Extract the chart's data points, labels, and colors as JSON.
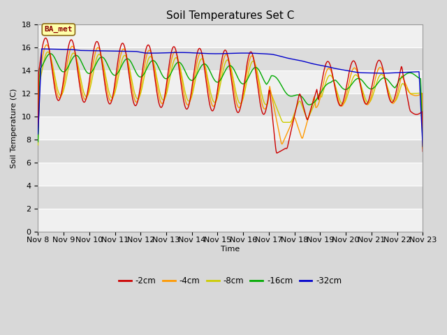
{
  "title": "Soil Temperatures Set C",
  "xlabel": "Time",
  "ylabel": "Soil Temperature (C)",
  "ylim": [
    0,
    18
  ],
  "yticks": [
    0,
    2,
    4,
    6,
    8,
    10,
    12,
    14,
    16,
    18
  ],
  "x_labels": [
    "Nov 8",
    "Nov 9",
    "Nov 10",
    "Nov 11",
    "Nov 12",
    "Nov 13",
    "Nov 14",
    "Nov 15",
    "Nov 16",
    "Nov 17",
    "Nov 18",
    "Nov 19",
    "Nov 20",
    "Nov 21",
    "Nov 22",
    "Nov 23"
  ],
  "legend_labels": [
    "-2cm",
    "-4cm",
    "-8cm",
    "-16cm",
    "-32cm"
  ],
  "colors": [
    "#cc0000",
    "#ff9900",
    "#cccc00",
    "#00aa00",
    "#0000cc"
  ],
  "bg_outer": "#d8d8d8",
  "bg_light": "#e8e8e8",
  "bg_dark": "#d0d0d0",
  "watermark": "BA_met",
  "title_fontsize": 11,
  "label_fontsize": 8,
  "tick_fontsize": 8
}
